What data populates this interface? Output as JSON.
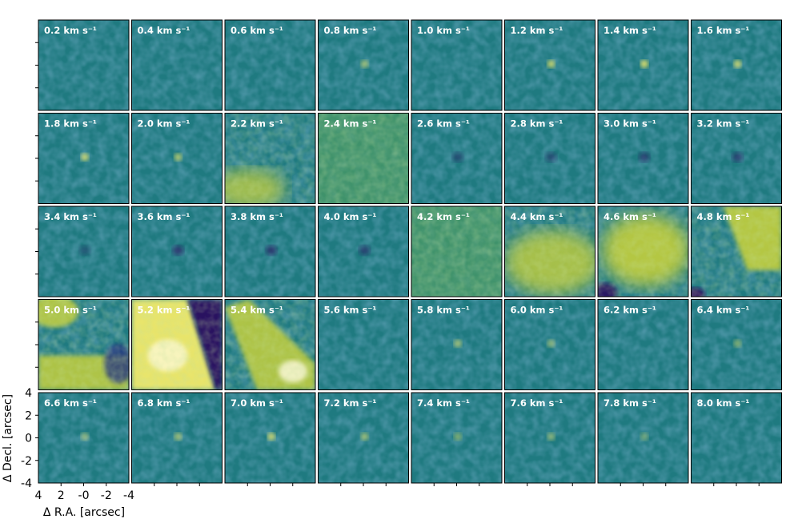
{
  "chart_data": {
    "type": "heatmap",
    "layout": {
      "rows": 5,
      "cols": 8
    },
    "colormap": {
      "name": "viridis-like",
      "stops": [
        "#2c0a5e",
        "#26377f",
        "#1f6586",
        "#1f8a7f",
        "#5aa55a",
        "#bccb3f",
        "#f2ea6a",
        "#fffbe0"
      ]
    },
    "panels": [
      {
        "label": "0.2 km s⁻¹"
      },
      {
        "label": "0.4 km s⁻¹"
      },
      {
        "label": "0.6 km s⁻¹"
      },
      {
        "label": "0.8 km s⁻¹"
      },
      {
        "label": "1.0 km s⁻¹"
      },
      {
        "label": "1.2 km s⁻¹"
      },
      {
        "label": "1.4 km s⁻¹"
      },
      {
        "label": "1.6 km s⁻¹"
      },
      {
        "label": "1.8 km s⁻¹"
      },
      {
        "label": "2.0 km s⁻¹"
      },
      {
        "label": "2.2 km s⁻¹"
      },
      {
        "label": "2.4 km s⁻¹"
      },
      {
        "label": "2.6 km s⁻¹"
      },
      {
        "label": "2.8 km s⁻¹"
      },
      {
        "label": "3.0 km s⁻¹"
      },
      {
        "label": "3.2 km s⁻¹"
      },
      {
        "label": "3.4 km s⁻¹"
      },
      {
        "label": "3.6 km s⁻¹"
      },
      {
        "label": "3.8 km s⁻¹"
      },
      {
        "label": "4.0 km s⁻¹"
      },
      {
        "label": "4.2 km s⁻¹"
      },
      {
        "label": "4.4 km s⁻¹"
      },
      {
        "label": "4.6 km s⁻¹"
      },
      {
        "label": "4.8 km s⁻¹"
      },
      {
        "label": "5.0 km s⁻¹"
      },
      {
        "label": "5.2 km s⁻¹"
      },
      {
        "label": "5.4 km s⁻¹"
      },
      {
        "label": "5.6 km s⁻¹"
      },
      {
        "label": "5.8 km s⁻¹"
      },
      {
        "label": "6.0 km s⁻¹"
      },
      {
        "label": "6.2 km s⁻¹"
      },
      {
        "label": "6.4 km s⁻¹"
      },
      {
        "label": "6.6 km s⁻¹"
      },
      {
        "label": "6.8 km s⁻¹"
      },
      {
        "label": "7.0 km s⁻¹"
      },
      {
        "label": "7.2 km s⁻¹"
      },
      {
        "label": "7.4 km s⁻¹"
      },
      {
        "label": "7.6 km s⁻¹"
      },
      {
        "label": "7.8 km s⁻¹"
      },
      {
        "label": "8.0 km s⁻¹"
      }
    ],
    "xlabel": "Δ R.A. [arcsec]",
    "ylabel": "Δ Decl. [arcsec]",
    "xlim": [
      4,
      -4
    ],
    "ylim": [
      -4,
      4
    ],
    "xticks": [
      "4",
      "2",
      "-0",
      "-2",
      "-4"
    ],
    "yticks": [
      "4",
      "2",
      "0",
      "-2",
      "-4"
    ],
    "colorbar": false
  }
}
